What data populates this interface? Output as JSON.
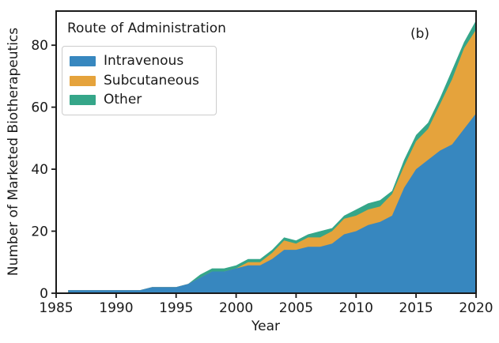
{
  "figure": {
    "panel_label": "(b)",
    "background": "#ffffff",
    "text_color": "#1a1a1a",
    "spine_color": "#1a1a1a"
  },
  "legend": {
    "title": "Route of Administration",
    "position": "upper left",
    "items": [
      {
        "label": "Intravenous",
        "color": "#3787bf"
      },
      {
        "label": "Subcutaneous",
        "color": "#e5a33c"
      },
      {
        "label": "Other",
        "color": "#35a689"
      }
    ]
  },
  "axes": {
    "xlabel": "Year",
    "ylabel": "Number of Marketed Biotherapeutics",
    "xticks": [
      1985,
      1990,
      1995,
      2000,
      2005,
      2010,
      2015,
      2020
    ],
    "yticks": [
      0,
      20,
      40,
      60,
      80
    ]
  },
  "chart_data": {
    "type": "area",
    "stacked": true,
    "title": "Route of Administration",
    "xlabel": "Year",
    "ylabel": "Number of Marketed Biotherapeutics",
    "xlim": [
      1985,
      2020
    ],
    "ylim": [
      0,
      91
    ],
    "xticks": [
      1985,
      1990,
      1995,
      2000,
      2005,
      2010,
      2015,
      2020
    ],
    "yticks": [
      0,
      20,
      40,
      60,
      80
    ],
    "grid": false,
    "legend_position": "upper left",
    "annotations": [
      {
        "text": "(b)",
        "position": "upper right"
      }
    ],
    "x": [
      1986,
      1987,
      1988,
      1989,
      1990,
      1991,
      1992,
      1993,
      1994,
      1995,
      1996,
      1997,
      1998,
      1999,
      2000,
      2001,
      2002,
      2003,
      2004,
      2005,
      2006,
      2007,
      2008,
      2009,
      2010,
      2011,
      2012,
      2013,
      2014,
      2015,
      2016,
      2017,
      2018,
      2019,
      2020
    ],
    "series": [
      {
        "name": "Intravenous",
        "color": "#3787bf",
        "values": [
          1,
          1,
          1,
          1,
          1,
          1,
          1,
          2,
          2,
          2,
          3,
          5,
          7,
          7,
          8,
          9,
          9,
          11,
          14,
          14,
          15,
          15,
          16,
          19,
          20,
          22,
          23,
          25,
          34,
          40,
          43,
          46,
          48,
          53,
          58
        ]
      },
      {
        "name": "Subcutaneous",
        "color": "#e5a33c",
        "values": [
          0,
          0,
          0,
          0,
          0,
          0,
          0,
          0,
          0,
          0,
          0,
          0,
          0,
          0,
          0,
          1,
          1,
          2,
          3,
          2,
          3,
          3,
          4,
          5,
          5,
          5,
          5,
          7,
          7,
          9,
          10,
          15,
          21,
          26,
          27
        ]
      },
      {
        "name": "Other",
        "color": "#35a689",
        "values": [
          0,
          0,
          0,
          0,
          0,
          0,
          0,
          0,
          0,
          0,
          0,
          1,
          1,
          1,
          1,
          1,
          1,
          1,
          1,
          1,
          1,
          2,
          1,
          1,
          2,
          2,
          2,
          1,
          2,
          2,
          2,
          2,
          3,
          2,
          3
        ]
      }
    ]
  }
}
